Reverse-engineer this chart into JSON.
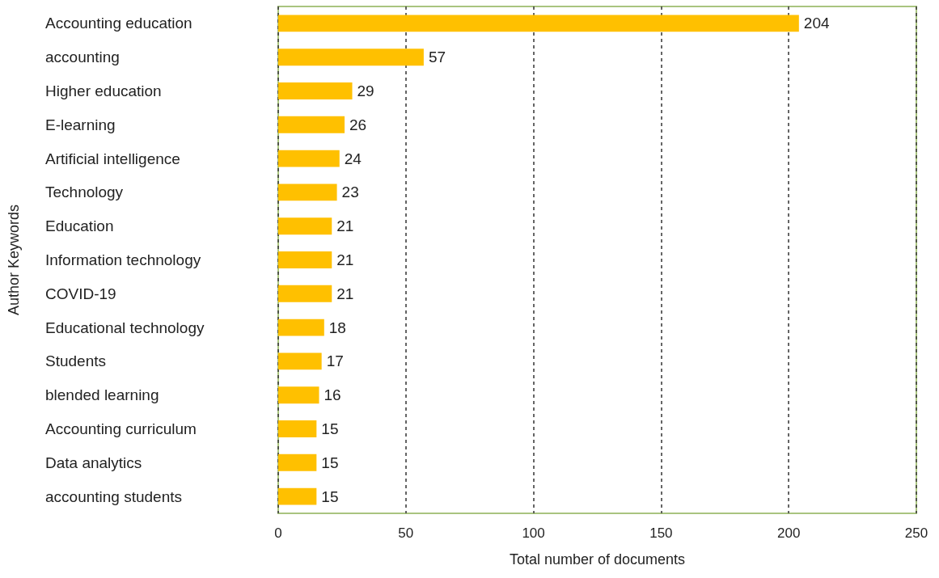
{
  "chart_data": {
    "type": "bar",
    "orientation": "horizontal",
    "xlabel": "Total number of documents",
    "ylabel": "Author Keywords",
    "categories": [
      "Accounting education",
      "accounting",
      "Higher education",
      "E-learning",
      "Artificial intelligence",
      "Technology",
      "Education",
      "Information technology",
      "COVID-19",
      "Educational technology",
      "Students",
      "blended learning",
      "Accounting curriculum",
      "Data analytics",
      "accounting students"
    ],
    "values": [
      204,
      57,
      29,
      26,
      24,
      23,
      21,
      21,
      21,
      18,
      17,
      16,
      15,
      15,
      15
    ],
    "color": "#ffc000",
    "xlim": [
      0,
      250
    ],
    "xticks": [
      0,
      50,
      100,
      150,
      200,
      250
    ],
    "grid": "x",
    "data_labels": true
  }
}
